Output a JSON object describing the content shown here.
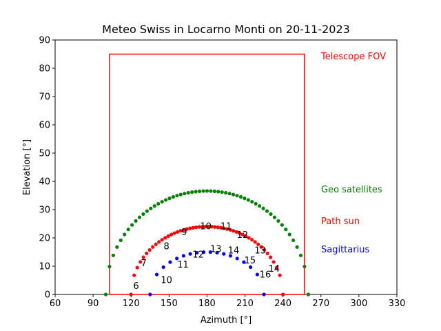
{
  "chart_data": {
    "type": "scatter",
    "title": "Meteo Swiss in Locarno Monti on 20-11-2023",
    "xlabel": "Azimuth [°]",
    "ylabel": "Elevation [°]",
    "xlim": [
      60,
      330
    ],
    "ylim": [
      0,
      90
    ],
    "xticks": [
      60,
      90,
      120,
      150,
      180,
      210,
      240,
      270,
      300,
      330
    ],
    "yticks": [
      0,
      10,
      20,
      30,
      40,
      50,
      60,
      70,
      80,
      90
    ],
    "grid": false,
    "fov": {
      "label": "Telescope FOV",
      "color": "#ff0000",
      "azimuth": [
        103,
        257
      ],
      "elevation": [
        0,
        85
      ]
    },
    "series": [
      {
        "name": "Geo satellites",
        "color": "#008000",
        "type": "arc",
        "azimuth_range": [
          100,
          260
        ],
        "peak_azimuth": 180,
        "peak_elevation": 36.6,
        "points": 55
      },
      {
        "name": "Path sun",
        "color": "#ff0000",
        "type": "arc",
        "azimuth_range": [
          120,
          240
        ],
        "peak_azimuth": 180,
        "peak_elevation": 24,
        "points": 50
      },
      {
        "name": "Sagittarius",
        "color": "#0000ff",
        "type": "arc",
        "azimuth_range": [
          135,
          225
        ],
        "peak_azimuth": 180,
        "peak_elevation": 15,
        "points": 18
      }
    ],
    "hour_labels": [
      {
        "text": "6",
        "x": 124,
        "y": 2
      },
      {
        "text": "7",
        "x": 130,
        "y": 10
      },
      {
        "text": "8",
        "x": 148,
        "y": 16
      },
      {
        "text": "9",
        "x": 162,
        "y": 21
      },
      {
        "text": "10",
        "x": 179,
        "y": 23
      },
      {
        "text": "11",
        "x": 195,
        "y": 23
      },
      {
        "text": "12",
        "x": 208,
        "y": 20
      },
      {
        "text": "13",
        "x": 222,
        "y": 14.5
      },
      {
        "text": "14",
        "x": 233,
        "y": 8
      },
      {
        "text": "10",
        "x": 148,
        "y": 4
      },
      {
        "text": "11",
        "x": 161,
        "y": 9.5
      },
      {
        "text": "12",
        "x": 173,
        "y": 13
      },
      {
        "text": "13",
        "x": 187,
        "y": 15
      },
      {
        "text": "14",
        "x": 201,
        "y": 14.5
      },
      {
        "text": "15",
        "x": 214,
        "y": 11
      },
      {
        "text": "16",
        "x": 226,
        "y": 6
      }
    ]
  }
}
